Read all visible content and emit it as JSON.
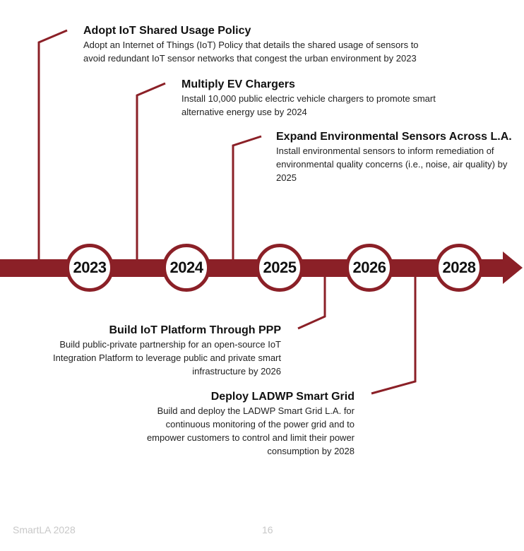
{
  "colors": {
    "accent": "#8b2027",
    "footer_text": "#c8c8c8"
  },
  "milestones_above": [
    {
      "title": "Adopt IoT Shared Usage Policy",
      "description": "Adopt an Internet of Things (IoT) Policy that details the shared usage of sensors to avoid redundant IoT sensor networks that congest the urban environment by 2023"
    },
    {
      "title": "Multiply EV Chargers",
      "description": "Install 10,000 public electric vehicle chargers to promote smart alternative energy use by 2024"
    },
    {
      "title": "Expand Environmental Sensors Across L.A.",
      "description": "Install environmental sensors to inform remediation of environmental quality concerns (i.e., noise, air quality) by 2025"
    }
  ],
  "years": [
    "2023",
    "2024",
    "2025",
    "2026",
    "2028"
  ],
  "milestones_below": [
    {
      "title": "Build IoT Platform Through PPP",
      "description": "Build public-private partnership for an open-source IoT Integration Platform to leverage public and private smart infrastructure by 2026"
    },
    {
      "title": "Deploy LADWP Smart Grid",
      "description": "Build and deploy the LADWP Smart Grid L.A. for continuous monitoring of the power grid and to empower customers to control and limit their power consumption by 2028"
    }
  ],
  "footer": {
    "document_name": "SmartLA 2028",
    "page_number": "16"
  }
}
